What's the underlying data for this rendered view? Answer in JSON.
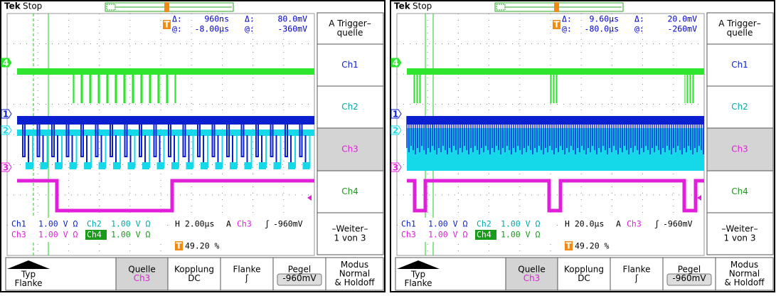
{
  "panels": [
    {
      "brand": "Tek",
      "state": "Stop",
      "trigger_marker": "T",
      "readout": {
        "delta_label": "Δ:",
        "delta_time": "960ns",
        "delta_label_2": "Δ:",
        "delta_volt": "80.0mV",
        "at_label": "@:",
        "at_time": "-8.00µs",
        "at_label_2": "@:",
        "at_volt": "-360mV"
      },
      "channel_markers": [
        "4",
        "1",
        "2",
        "3"
      ],
      "status": {
        "ch1": "Ch1",
        "ch1_scale": "1.00 V Ω",
        "ch2": "Ch2",
        "ch2_scale": "1.00 V Ω",
        "ch3": "Ch3",
        "ch3_scale": "1.00 V Ω",
        "ch4": "Ch4",
        "ch4_scale": "1.00 V Ω",
        "horizontal": "H 2.00µs",
        "trigger_type": "A",
        "trigger_source": "Ch3",
        "slope": "ʃ",
        "level": "-960mV",
        "position": "49.20 %"
      },
      "side_menu": [
        {
          "lines": [
            "A Trigger–",
            "quelle"
          ]
        },
        {
          "lines": [
            "Ch1"
          ]
        },
        {
          "lines": [
            "Ch2"
          ]
        },
        {
          "lines": [
            "Ch3"
          ]
        },
        {
          "lines": [
            "Ch4"
          ]
        },
        {
          "lines": [
            "–Weiter–",
            "1 von 3"
          ]
        }
      ],
      "bottom_menu": [
        {
          "lines": [
            "Typ",
            "Flanke"
          ]
        },
        {
          "lines": [
            "Quelle",
            "Ch3"
          ]
        },
        {
          "lines": [
            "Kopplung",
            "DC"
          ]
        },
        {
          "lines": [
            "Flanke",
            "ʃ"
          ]
        },
        {
          "lines": [
            "Pegel",
            "-960mV"
          ]
        },
        {
          "lines": [
            "Modus",
            "Normal",
            "& Holdoff"
          ]
        }
      ]
    },
    {
      "brand": "Tek",
      "state": "Stop",
      "trigger_marker": "T",
      "readout": {
        "delta_label": "Δ:",
        "delta_time": "9.60µs",
        "delta_label_2": "Δ:",
        "delta_volt": "20.0mV",
        "at_label": "@:",
        "at_time": "-80.0µs",
        "at_label_2": "@:",
        "at_volt": "-260mV"
      },
      "channel_markers": [
        "4",
        "1",
        "2",
        "3"
      ],
      "status": {
        "ch1": "Ch1",
        "ch1_scale": "1.00 V Ω",
        "ch2": "Ch2",
        "ch2_scale": "1.00 V Ω",
        "ch3": "Ch3",
        "ch3_scale": "1.00 V Ω",
        "ch4": "Ch4",
        "ch4_scale": "1.00 V Ω",
        "horizontal": "H 20.0µs",
        "trigger_type": "A",
        "trigger_source": "Ch3",
        "slope": "ʃ",
        "level": "-960mV",
        "position": "49.20 %"
      },
      "side_menu": [
        {
          "lines": [
            "A Trigger–",
            "quelle"
          ]
        },
        {
          "lines": [
            "Ch1"
          ]
        },
        {
          "lines": [
            "Ch2"
          ]
        },
        {
          "lines": [
            "Ch3"
          ]
        },
        {
          "lines": [
            "Ch4"
          ]
        },
        {
          "lines": [
            "–Weiter–",
            "1 von 3"
          ]
        }
      ],
      "bottom_menu": [
        {
          "lines": [
            "Typ",
            "Flanke"
          ]
        },
        {
          "lines": [
            "Quelle",
            "Ch3"
          ]
        },
        {
          "lines": [
            "Kopplung",
            "DC"
          ]
        },
        {
          "lines": [
            "Flanke",
            "ʃ"
          ]
        },
        {
          "lines": [
            "Pegel",
            "-960mV"
          ]
        },
        {
          "lines": [
            "Modus",
            "Normal",
            "& Holdoff"
          ]
        }
      ]
    }
  ]
}
